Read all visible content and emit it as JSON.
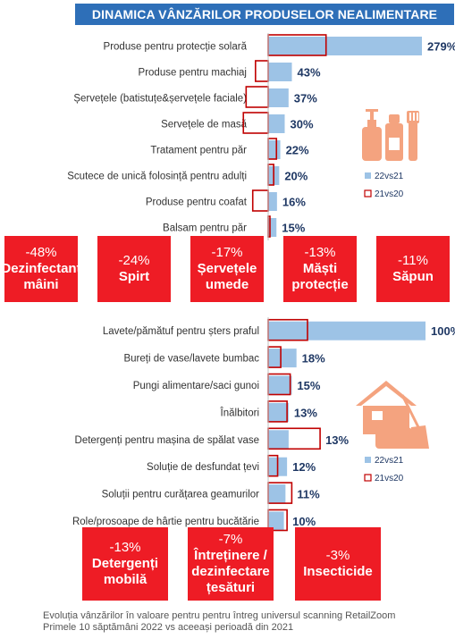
{
  "title": "DINAMICA VÂNZĂRILOR PRODUSELOR NEALIMENTARE",
  "colors": {
    "bar_22vs21": "#9dc3e6",
    "outline_21vs20": "#c00000",
    "value_text": "#1f3864",
    "tile_red": "#ee1c25",
    "title_bg": "#2e6fb8"
  },
  "icons": [
    "personal-care-bottles-icon",
    "home-cleaning-icon"
  ],
  "chart_data": [
    {
      "type": "bar",
      "orientation": "horizontal",
      "categories": [
        "Produse pentru protecție solară",
        "Produse pentru machiaj",
        "Șervețele (batistuțe&șervețele faciale)",
        "Servețele de masă",
        "Tratament pentru păr",
        "Scutece de unică folosință pentru adulți",
        "Produse pentru coafat",
        "Balsam pentru păr"
      ],
      "series": [
        {
          "name": "22vs21",
          "values": [
            279,
            43,
            37,
            30,
            22,
            20,
            16,
            15
          ],
          "labels": [
            "279%",
            "43%",
            "37%",
            "30%",
            "22%",
            "20%",
            "16%",
            "15%"
          ]
        },
        {
          "name": "21vs20",
          "values": [
            105,
            -23,
            -40,
            -45,
            15,
            10,
            -28,
            3
          ]
        }
      ],
      "legend": [
        "22vs21",
        "21vs20"
      ]
    },
    {
      "type": "bar",
      "orientation": "horizontal",
      "categories": [
        "Lavete/pămătuf pentru șters praful",
        "Bureți de vase/lavete bumbac",
        "Pungi alimentare/saci gunoi",
        "Înălbitori",
        "Detergenți pentru mașina de spălat vase",
        "Soluție de desfundat țevi",
        "Soluții pentru curățarea geamurilor",
        "Role/prosoape de hârtie pentru bucătărie"
      ],
      "series": [
        {
          "name": "22vs21",
          "values": [
            100,
            18,
            15,
            13,
            13,
            12,
            11,
            10
          ],
          "labels": [
            "100%",
            "18%",
            "15%",
            "13%",
            "13%",
            "12%",
            "11%",
            "10%"
          ]
        },
        {
          "name": "21vs20",
          "values": [
            25,
            8,
            14,
            12,
            33,
            6,
            15,
            12
          ]
        }
      ],
      "legend": [
        "22vs21",
        "21vs20"
      ]
    }
  ],
  "tiles_row1": [
    {
      "pct": "-48%",
      "l1": "Dezinfectant",
      "l2": "mâini"
    },
    {
      "pct": "-24%",
      "l1": "Spirt",
      "l2": ""
    },
    {
      "pct": "-17%",
      "l1": "Șervețele",
      "l2": "umede"
    },
    {
      "pct": "-13%",
      "l1": "Măști",
      "l2": "protecție"
    },
    {
      "pct": "-11%",
      "l1": "Săpun",
      "l2": ""
    }
  ],
  "tiles_row2": [
    {
      "pct": "-13%",
      "l1": "Detergenți",
      "l2": "mobilă"
    },
    {
      "pct": "-7%",
      "l1": "Întreținere /",
      "l2": "dezinfectare",
      "l3": "țesături"
    },
    {
      "pct": "-3%",
      "l1": "Insecticide",
      "l2": ""
    }
  ],
  "footer": {
    "line1": "Evoluția vânzărilor în valoare pentru pentru întreg universul scanning RetailZoom",
    "line2": "Primele 10 săptămâni 2022 vs aceeași perioadă din 2021"
  }
}
